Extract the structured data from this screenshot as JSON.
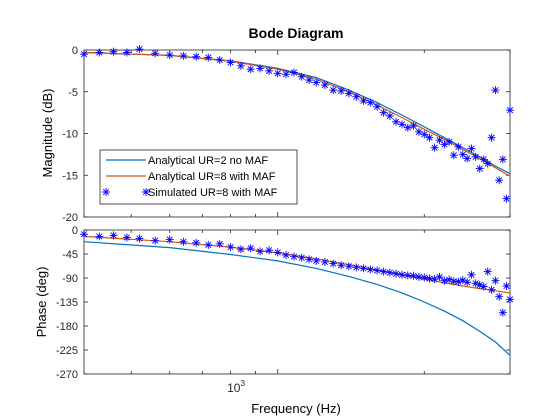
{
  "figure": {
    "title": "Bode Diagram",
    "xlabel": "Frequency  (Hz)",
    "x_tick_label_base": "10",
    "x_tick_label_exp": "3"
  },
  "colors": {
    "analytical_ur2": "#0072BD",
    "analytical_ur8": "#D95319",
    "simulated": "#0000FF",
    "axis": "#262626",
    "tick_text": "#262626"
  },
  "chart_data": [
    {
      "type": "line",
      "panel": "magnitude",
      "ylabel": "Magnitude (dB)",
      "xscale": "log",
      "xlim": [
        400,
        3000
      ],
      "ylim": [
        -20,
        0
      ],
      "yticks": [
        0,
        -5,
        -10,
        -15,
        -20
      ],
      "xticks": [
        1000
      ],
      "legend": {
        "placement": "bottom-left",
        "entries": [
          "Analytical UR=2 no MAF",
          "Analytical UR=8 with MAF",
          "Simulated UR=8 with MAF"
        ]
      },
      "series": [
        {
          "name": "Analytical UR=2 no MAF",
          "style": "line",
          "x": [
            400,
            600,
            800,
            1000,
            1200,
            1400,
            1600,
            1800,
            2000,
            2200,
            2400,
            2600,
            2800,
            3000
          ],
          "y": [
            -0.3,
            -0.65,
            -1.3,
            -2.2,
            -3.3,
            -4.8,
            -6.3,
            -7.8,
            -9.2,
            -10.5,
            -11.7,
            -12.8,
            -13.9,
            -14.8
          ]
        },
        {
          "name": "Analytical UR=8 with MAF",
          "style": "line",
          "x": [
            400,
            600,
            800,
            1000,
            1200,
            1400,
            1600,
            1800,
            2000,
            2200,
            2400,
            2600,
            2800,
            3000
          ],
          "y": [
            -0.3,
            -0.65,
            -1.35,
            -2.3,
            -3.5,
            -5.0,
            -6.6,
            -8.1,
            -9.5,
            -10.7,
            -11.9,
            -13.0,
            -14.1,
            -15.1
          ]
        },
        {
          "name": "Simulated UR=8 with MAF",
          "style": "markers",
          "x": [
            400,
            430,
            460,
            490,
            520,
            560,
            600,
            640,
            680,
            720,
            760,
            800,
            840,
            880,
            920,
            960,
            1000,
            1040,
            1080,
            1120,
            1160,
            1200,
            1250,
            1300,
            1350,
            1400,
            1450,
            1500,
            1550,
            1600,
            1650,
            1700,
            1750,
            1800,
            1850,
            1900,
            1950,
            2000,
            2050,
            2100,
            2150,
            2200,
            2250,
            2300,
            2350,
            2400,
            2450,
            2500,
            2550,
            2600,
            2650,
            2700,
            2750,
            2800,
            2850,
            2900,
            2950,
            3000
          ],
          "y": [
            -0.5,
            -0.3,
            -0.2,
            -0.3,
            0.1,
            -0.4,
            -0.6,
            -0.7,
            -0.8,
            -0.9,
            -1.2,
            -1.5,
            -1.9,
            -2.3,
            -2.2,
            -2.5,
            -2.8,
            -2.9,
            -2.7,
            -3.2,
            -3.6,
            -3.9,
            -4.2,
            -4.8,
            -4.9,
            -5.2,
            -5.6,
            -6.1,
            -6.3,
            -6.8,
            -7.5,
            -7.9,
            -8.6,
            -8.9,
            -9.3,
            -9.1,
            -9.8,
            -10.1,
            -10.5,
            -11.7,
            -10.8,
            -11.3,
            -11.0,
            -12.6,
            -11.6,
            -12.5,
            -13.0,
            -11.8,
            -12.8,
            -14.2,
            -13.1,
            -13.6,
            -10.5,
            -4.8,
            -15.6,
            -13.1,
            -17.8,
            -7.2
          ]
        }
      ]
    },
    {
      "type": "line",
      "panel": "phase",
      "ylabel": "Phase (deg)",
      "xscale": "log",
      "xlim": [
        400,
        3000
      ],
      "ylim": [
        -270,
        0
      ],
      "yticks": [
        0,
        -45,
        -90,
        -135,
        -180,
        -225,
        -270
      ],
      "xticks": [
        1000
      ],
      "series": [
        {
          "name": "Analytical UR=2 no MAF",
          "style": "line",
          "x": [
            400,
            600,
            800,
            1000,
            1200,
            1400,
            1600,
            1800,
            2000,
            2200,
            2400,
            2600,
            2800,
            3000
          ],
          "y": [
            -22,
            -33,
            -46,
            -58,
            -72,
            -87,
            -102,
            -118,
            -135,
            -152,
            -170,
            -190,
            -210,
            -235
          ]
        },
        {
          "name": "Analytical UR=8 with MAF",
          "style": "line",
          "x": [
            400,
            600,
            800,
            1000,
            1200,
            1400,
            1600,
            1800,
            2000,
            2200,
            2400,
            2600,
            2800,
            3000
          ],
          "y": [
            -12,
            -22,
            -32,
            -43,
            -54,
            -65,
            -75,
            -84,
            -92,
            -99,
            -105,
            -110,
            -114,
            -118
          ]
        },
        {
          "name": "Simulated UR=8 with MAF",
          "style": "markers",
          "x": [
            400,
            430,
            460,
            490,
            520,
            560,
            600,
            640,
            680,
            720,
            760,
            800,
            840,
            880,
            920,
            960,
            1000,
            1040,
            1080,
            1120,
            1160,
            1200,
            1250,
            1300,
            1350,
            1400,
            1450,
            1500,
            1550,
            1600,
            1650,
            1700,
            1750,
            1800,
            1850,
            1900,
            1950,
            2000,
            2050,
            2100,
            2150,
            2200,
            2250,
            2300,
            2350,
            2400,
            2450,
            2500,
            2550,
            2600,
            2650,
            2700,
            2750,
            2800,
            2850,
            2900,
            2950,
            3000
          ],
          "y": [
            -8,
            -12,
            -10,
            -14,
            -16,
            -20,
            -18,
            -22,
            -24,
            -28,
            -26,
            -32,
            -36,
            -34,
            -40,
            -38,
            -42,
            -47,
            -50,
            -52,
            -55,
            -58,
            -60,
            -63,
            -66,
            -68,
            -70,
            -72,
            -74,
            -76,
            -78,
            -80,
            -82,
            -84,
            -85,
            -86,
            -88,
            -89,
            -91,
            -92,
            -88,
            -95,
            -93,
            -96,
            -97,
            -94,
            -98,
            -84,
            -100,
            -103,
            -106,
            -78,
            -112,
            -95,
            -125,
            -155,
            -105,
            -130
          ]
        }
      ]
    }
  ]
}
